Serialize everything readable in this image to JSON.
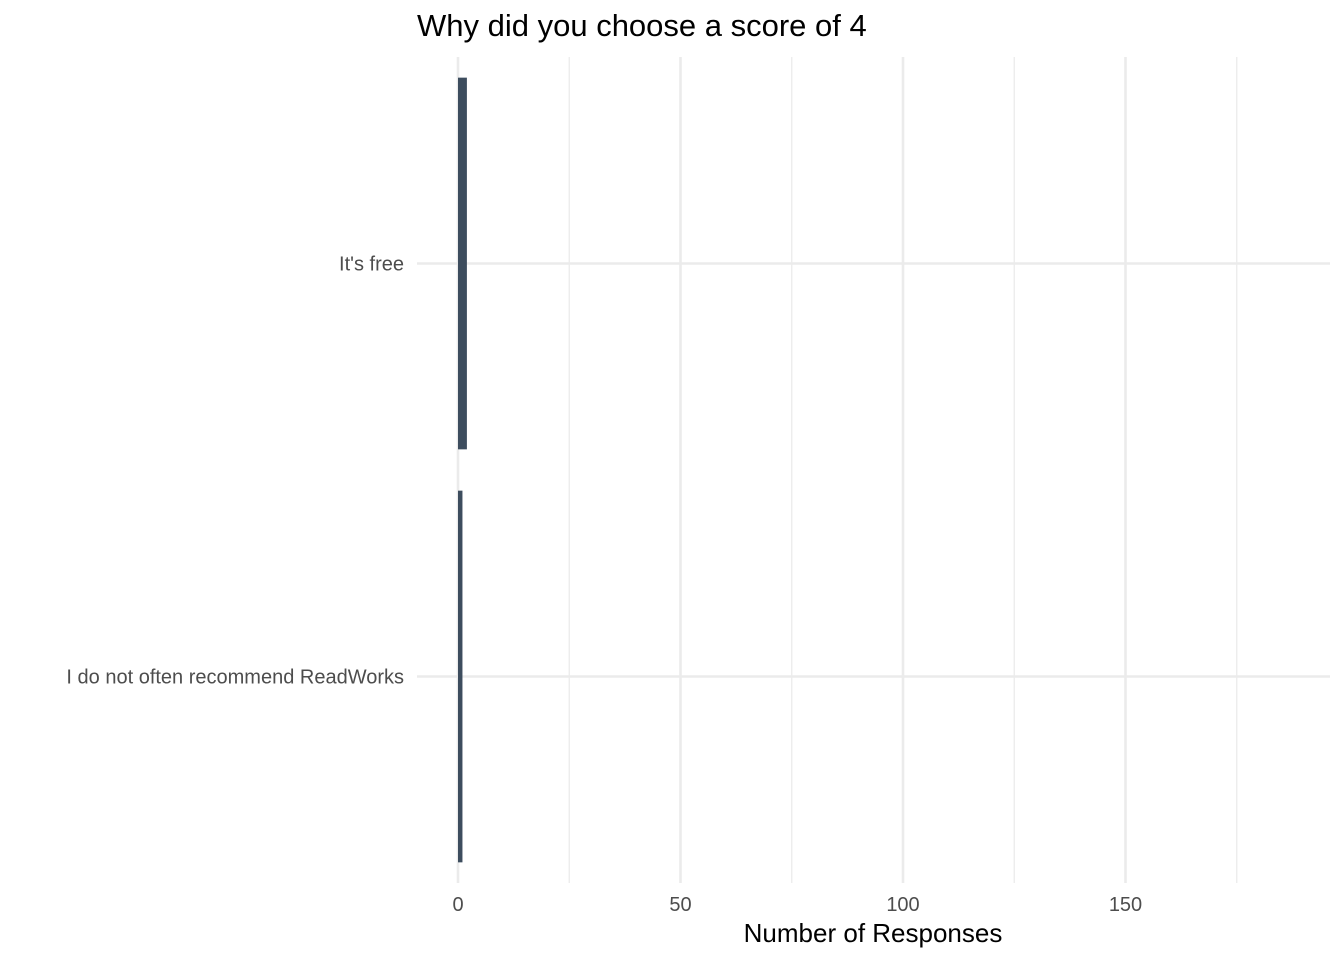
{
  "chart_data": {
    "type": "bar",
    "orientation": "horizontal",
    "title": "Why did you choose a score of 4",
    "xlabel": "Number of Responses",
    "ylabel": "",
    "categories": [
      "I do not often recommend ReadWorks",
      "It's free"
    ],
    "values": [
      1,
      2
    ],
    "xlim": [
      0,
      195
    ],
    "x_ticks": [
      0,
      50,
      100,
      150
    ],
    "x_minor_ticks": [
      25,
      75,
      125,
      175
    ],
    "bar_color": "#3d4d5e",
    "grid": true,
    "legend": "none"
  }
}
